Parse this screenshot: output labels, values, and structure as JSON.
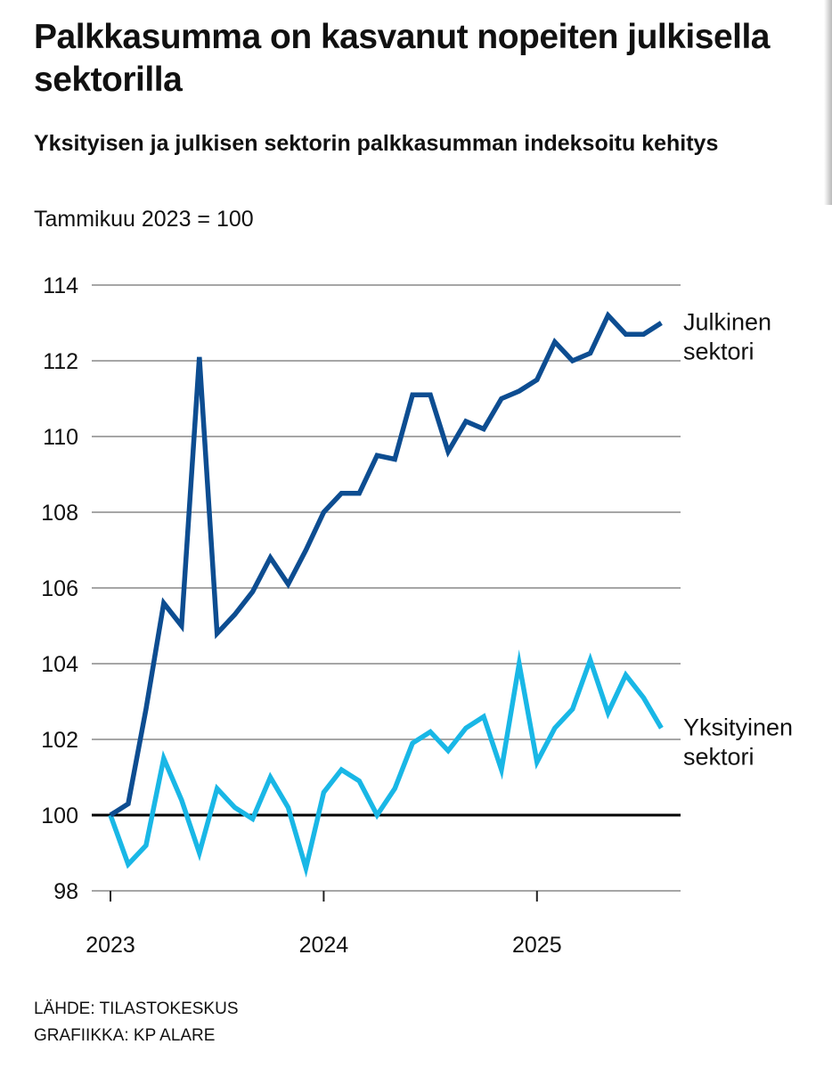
{
  "header": {
    "title": "Palkkasumma on kasvanut nopeiten julkisella sektorilla",
    "subtitle": "Yksityisen ja julkisen sektorin palkkasumman indeksoitu kehitys",
    "note": "Tammikuu 2023 = 100"
  },
  "footer": {
    "source": "LÄHDE: TILASTOKESKUS",
    "credit": "GRAFIIKKA: KP ALARE"
  },
  "chart_data": {
    "type": "line",
    "title": "Palkkasumma on kasvanut nopeiten julkisella sektorilla",
    "subtitle": "Yksityisen ja julkisen sektorin palkkasumman indeksoitu kehitys",
    "note": "Tammikuu 2023 = 100",
    "ylim": [
      98,
      114
    ],
    "yticks": [
      98,
      100,
      102,
      104,
      106,
      108,
      110,
      112,
      114
    ],
    "xlim": [
      0,
      31
    ],
    "x_unit": "kuukausi (0 = tammikuu 2023)",
    "xticks": [
      {
        "x": 0,
        "label": "2023"
      },
      {
        "x": 12,
        "label": "2024"
      },
      {
        "x": 24,
        "label": "2025"
      }
    ],
    "baseline": 100,
    "grid": true,
    "legend": "series labels at right end of lines",
    "series": [
      {
        "name": "Julkinen sektori",
        "label_lines": [
          "Julkinen",
          "sektori"
        ],
        "color": "#0d4d91",
        "x": [
          0,
          1,
          2,
          3,
          4,
          5,
          6,
          7,
          8,
          9,
          10,
          11,
          12,
          13,
          14,
          15,
          16,
          17,
          18,
          19,
          20,
          21,
          22,
          23,
          24,
          25,
          26,
          27,
          28,
          29,
          30,
          31
        ],
        "values": [
          100.0,
          100.3,
          102.8,
          105.6,
          105.0,
          112.1,
          104.8,
          105.3,
          105.9,
          106.8,
          106.1,
          107.0,
          108.0,
          108.5,
          108.5,
          109.5,
          109.4,
          111.1,
          111.1,
          109.6,
          110.4,
          110.2,
          111.0,
          111.2,
          111.5,
          112.5,
          112.0,
          112.2,
          113.2,
          112.7,
          112.7,
          113.0
        ]
      },
      {
        "name": "Yksityinen sektori",
        "label_lines": [
          "Yksityinen",
          "sektori"
        ],
        "color": "#19b7e6",
        "x": [
          0,
          1,
          2,
          3,
          4,
          5,
          6,
          7,
          8,
          9,
          10,
          11,
          12,
          13,
          14,
          15,
          16,
          17,
          18,
          19,
          20,
          21,
          22,
          23,
          24,
          25,
          26,
          27,
          28,
          29,
          30,
          31
        ],
        "values": [
          100.0,
          98.7,
          99.2,
          101.5,
          100.4,
          99.0,
          100.7,
          100.2,
          99.9,
          101.0,
          100.2,
          98.6,
          100.6,
          101.2,
          100.9,
          100.0,
          100.7,
          101.9,
          102.2,
          101.7,
          102.3,
          102.6,
          101.2,
          104.0,
          101.4,
          102.3,
          102.8,
          104.1,
          102.7,
          103.7,
          103.1,
          102.3
        ]
      }
    ]
  }
}
